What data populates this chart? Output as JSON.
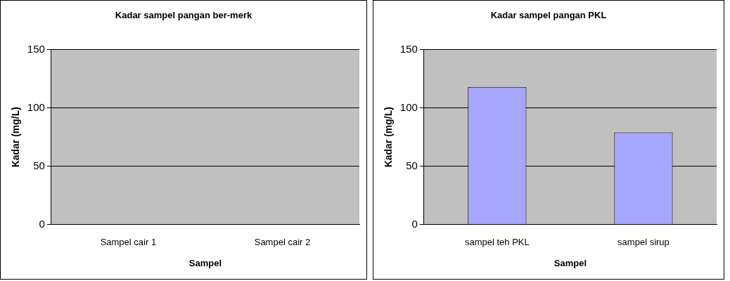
{
  "chart_data": [
    {
      "type": "bar",
      "title": "Kadar sampel pangan ber-merk",
      "xlabel": "Sampel",
      "ylabel": "Kadar (mg/L)",
      "categories": [
        "Sampel cair 1",
        "Sampel cair 2"
      ],
      "values": [
        null,
        null
      ],
      "color": "#a6a6ff",
      "ylim": [
        0,
        150
      ],
      "yticks": [
        0,
        50,
        100,
        150
      ],
      "grid": "y",
      "legend": false
    },
    {
      "type": "bar",
      "title": "Kadar sampel pangan PKL",
      "xlabel": "Sampel",
      "ylabel": "Kadar (mg/L)",
      "categories": [
        "sampel teh PKL",
        "sampel sirup"
      ],
      "values": [
        118,
        79
      ],
      "color": "#a6a6ff",
      "ylim": [
        0,
        150
      ],
      "yticks": [
        0,
        50,
        100,
        150
      ],
      "grid": "y",
      "legend": false
    }
  ]
}
